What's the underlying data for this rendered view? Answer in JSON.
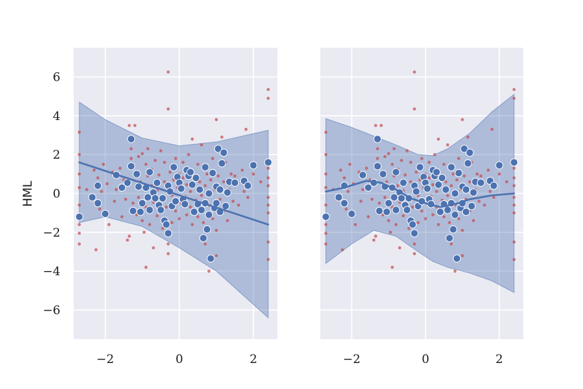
{
  "chart_data": {
    "type": "scatter",
    "ylabel": "HML",
    "xlim": [
      -2.85,
      2.65
    ],
    "ylim": [
      -7.5,
      7.5
    ],
    "x_ticks": [
      -2,
      0,
      2
    ],
    "x_tick_labels": [
      "−2",
      "0",
      "2"
    ],
    "y_ticks": [
      -6,
      -4,
      -2,
      0,
      2,
      4,
      6
    ],
    "y_tick_labels": [
      "−6",
      "−4",
      "−2",
      "0",
      "2",
      "4",
      "6"
    ],
    "grid": true,
    "colors": {
      "background": "#eaeaf2",
      "grid": "#ffffff",
      "small_points": "#c44e52",
      "large_points": "#4c72b0",
      "fit_line": "#4c72b0",
      "band": "#4c72b0"
    },
    "panels": [
      {
        "fit": "linear",
        "fit_line": [
          [
            -2.7,
            1.6
          ],
          [
            2.4,
            -1.6
          ]
        ],
        "band_upper": [
          [
            -2.7,
            4.7
          ],
          [
            -2.0,
            3.8
          ],
          [
            -1.0,
            2.85
          ],
          [
            0.0,
            2.45
          ],
          [
            1.0,
            2.65
          ],
          [
            2.4,
            3.25
          ]
        ],
        "band_lower": [
          [
            -2.7,
            -1.5
          ],
          [
            -2.0,
            -1.2
          ],
          [
            -1.0,
            -1.7
          ],
          [
            0.0,
            -2.8
          ],
          [
            1.0,
            -4.0
          ],
          [
            2.4,
            -6.4
          ]
        ]
      },
      {
        "fit": "lowess",
        "fit_line": [
          [
            -2.7,
            0.1
          ],
          [
            -2.2,
            0.3
          ],
          [
            -1.6,
            0.65
          ],
          [
            -1.2,
            0.55
          ],
          [
            -0.8,
            0.2
          ],
          [
            -0.4,
            -0.25
          ],
          [
            0.0,
            -0.5
          ],
          [
            0.4,
            -0.7
          ],
          [
            0.8,
            -0.55
          ],
          [
            1.2,
            -0.3
          ],
          [
            1.8,
            -0.1
          ],
          [
            2.4,
            0.0
          ]
        ],
        "band_upper": [
          [
            -2.7,
            3.85
          ],
          [
            -2.0,
            3.4
          ],
          [
            -1.4,
            2.95
          ],
          [
            -0.8,
            2.5
          ],
          [
            -0.2,
            2.0
          ],
          [
            0.2,
            1.95
          ],
          [
            0.6,
            2.3
          ],
          [
            1.2,
            3.1
          ],
          [
            1.8,
            4.2
          ],
          [
            2.4,
            5.1
          ]
        ],
        "band_lower": [
          [
            -2.7,
            -3.6
          ],
          [
            -2.0,
            -2.6
          ],
          [
            -1.4,
            -1.9
          ],
          [
            -0.8,
            -2.2
          ],
          [
            -0.2,
            -3.0
          ],
          [
            0.2,
            -3.5
          ],
          [
            0.6,
            -3.8
          ],
          [
            1.2,
            -4.1
          ],
          [
            1.8,
            -4.5
          ],
          [
            2.4,
            -5.1
          ]
        ]
      }
    ],
    "large_points": [
      [
        -2.7,
        -1.2
      ],
      [
        -2.35,
        -0.2
      ],
      [
        -2.2,
        0.4
      ],
      [
        -2.2,
        -0.5
      ],
      [
        -2.0,
        -1.05
      ],
      [
        -1.7,
        0.95
      ],
      [
        -1.55,
        0.3
      ],
      [
        -1.4,
        0.55
      ],
      [
        -1.3,
        2.8
      ],
      [
        -1.3,
        1.4
      ],
      [
        -1.25,
        -0.9
      ],
      [
        -1.15,
        1.0
      ],
      [
        -1.1,
        0.35
      ],
      [
        -1.05,
        -0.95
      ],
      [
        -1.0,
        -0.5
      ],
      [
        -0.9,
        0.3
      ],
      [
        -0.85,
        -0.2
      ],
      [
        -0.8,
        1.1
      ],
      [
        -0.8,
        -0.85
      ],
      [
        -0.7,
        0.05
      ],
      [
        -0.65,
        -0.25
      ],
      [
        -0.6,
        0.55
      ],
      [
        -0.55,
        -0.6
      ],
      [
        -0.5,
        -0.85
      ],
      [
        -0.45,
        -0.25
      ],
      [
        -0.4,
        -1.4
      ],
      [
        -0.35,
        -1.6
      ],
      [
        -0.3,
        -2.05
      ],
      [
        -0.3,
        0.4
      ],
      [
        -0.25,
        0.1
      ],
      [
        -0.2,
        -0.65
      ],
      [
        -0.15,
        1.35
      ],
      [
        -0.1,
        -0.4
      ],
      [
        -0.05,
        0.85
      ],
      [
        0.0,
        0.55
      ],
      [
        0.05,
        0.25
      ],
      [
        0.1,
        -0.3
      ],
      [
        0.15,
        -0.55
      ],
      [
        0.2,
        1.2
      ],
      [
        0.25,
        0.9
      ],
      [
        0.3,
        1.1
      ],
      [
        0.35,
        0.45
      ],
      [
        0.4,
        -0.95
      ],
      [
        0.45,
        0.8
      ],
      [
        0.5,
        -0.55
      ],
      [
        0.55,
        0.2
      ],
      [
        0.6,
        -0.85
      ],
      [
        0.65,
        -2.3
      ],
      [
        0.7,
        1.35
      ],
      [
        0.7,
        -0.5
      ],
      [
        0.75,
        -1.85
      ],
      [
        0.8,
        0.0
      ],
      [
        0.8,
        -1.1
      ],
      [
        0.85,
        -3.35
      ],
      [
        0.9,
        1.05
      ],
      [
        0.95,
        -0.75
      ],
      [
        1.0,
        0.35
      ],
      [
        1.0,
        -0.5
      ],
      [
        1.05,
        2.3
      ],
      [
        1.1,
        -0.95
      ],
      [
        1.1,
        0.2
      ],
      [
        1.15,
        1.55
      ],
      [
        1.2,
        2.1
      ],
      [
        1.25,
        -0.65
      ],
      [
        1.3,
        0.05
      ],
      [
        1.35,
        0.6
      ],
      [
        1.5,
        0.55
      ],
      [
        1.75,
        0.65
      ],
      [
        1.85,
        0.4
      ],
      [
        2.0,
        1.45
      ],
      [
        2.4,
        1.6
      ]
    ],
    "small_points": [
      [
        -2.7,
        3.15
      ],
      [
        -2.7,
        2.0
      ],
      [
        -2.7,
        1.0
      ],
      [
        -2.7,
        0.3
      ],
      [
        -2.7,
        -0.6
      ],
      [
        -2.7,
        -1.6
      ],
      [
        -2.7,
        -2.05
      ],
      [
        -2.7,
        -2.6
      ],
      [
        -2.5,
        0.2
      ],
      [
        -2.4,
        -0.3
      ],
      [
        -2.3,
        1.2
      ],
      [
        -2.25,
        -2.9
      ],
      [
        -2.2,
        0.8
      ],
      [
        -2.15,
        -0.8
      ],
      [
        -2.1,
        0.1
      ],
      [
        -2.05,
        1.5
      ],
      [
        -1.95,
        0.5
      ],
      [
        -1.9,
        -1.6
      ],
      [
        -1.8,
        1.1
      ],
      [
        -1.75,
        -0.4
      ],
      [
        -1.7,
        0.2
      ],
      [
        -1.6,
        1.3
      ],
      [
        -1.55,
        -1.2
      ],
      [
        -1.5,
        0.7
      ],
      [
        -1.45,
        -0.3
      ],
      [
        -1.4,
        -2.4
      ],
      [
        -1.35,
        3.5
      ],
      [
        -1.35,
        -2.2
      ],
      [
        -1.3,
        2.3
      ],
      [
        -1.3,
        1.8
      ],
      [
        -1.25,
        -0.5
      ],
      [
        -1.2,
        3.5
      ],
      [
        -1.2,
        0.9
      ],
      [
        -1.15,
        -1.1
      ],
      [
        -1.1,
        1.9
      ],
      [
        -1.1,
        -0.2
      ],
      [
        -1.05,
        0.6
      ],
      [
        -1.0,
        -1.4
      ],
      [
        -1.0,
        2.05
      ],
      [
        -0.95,
        -2.0
      ],
      [
        -0.9,
        1.5
      ],
      [
        -0.9,
        -0.7
      ],
      [
        -0.9,
        -3.8
      ],
      [
        -0.85,
        0.9
      ],
      [
        -0.85,
        2.3
      ],
      [
        -0.8,
        -1.6
      ],
      [
        -0.75,
        0.4
      ],
      [
        -0.75,
        1.25
      ],
      [
        -0.7,
        -0.45
      ],
      [
        -0.7,
        -2.8
      ],
      [
        -0.65,
        1.7
      ],
      [
        -0.6,
        0.15
      ],
      [
        -0.6,
        -1.15
      ],
      [
        -0.55,
        0.95
      ],
      [
        -0.5,
        2.2
      ],
      [
        -0.5,
        -0.2
      ],
      [
        -0.45,
        -1.8
      ],
      [
        -0.4,
        0.6
      ],
      [
        -0.4,
        1.6
      ],
      [
        -0.35,
        -0.7
      ],
      [
        -0.3,
        6.25
      ],
      [
        -0.3,
        4.35
      ],
      [
        -0.3,
        -2.6
      ],
      [
        -0.3,
        -3.1
      ],
      [
        -0.25,
        1.1
      ],
      [
        -0.2,
        -0.1
      ],
      [
        -0.2,
        -1.5
      ],
      [
        -0.15,
        0.7
      ],
      [
        -0.1,
        1.8
      ],
      [
        -0.1,
        -0.9
      ],
      [
        -0.05,
        0.3
      ],
      [
        0.0,
        -1.3
      ],
      [
        0.0,
        1.0
      ],
      [
        0.05,
        -0.5
      ],
      [
        0.1,
        0.8
      ],
      [
        0.1,
        1.6
      ],
      [
        0.15,
        -0.15
      ],
      [
        0.2,
        -1.1
      ],
      [
        0.2,
        0.45
      ],
      [
        0.25,
        2.0
      ],
      [
        0.3,
        -0.7
      ],
      [
        0.3,
        0.1
      ],
      [
        0.35,
        2.8
      ],
      [
        0.35,
        -1.6
      ],
      [
        0.4,
        0.9
      ],
      [
        0.45,
        -0.35
      ],
      [
        0.5,
        1.5
      ],
      [
        0.5,
        -1.2
      ],
      [
        0.55,
        0.6
      ],
      [
        0.6,
        -0.1
      ],
      [
        0.6,
        2.5
      ],
      [
        0.65,
        -1.5
      ],
      [
        0.7,
        0.4
      ],
      [
        0.7,
        -2.6
      ],
      [
        0.75,
        1.0
      ],
      [
        0.8,
        -0.6
      ],
      [
        0.8,
        -4.0
      ],
      [
        0.85,
        0.7
      ],
      [
        0.9,
        -1.3
      ],
      [
        0.9,
        1.8
      ],
      [
        0.95,
        0.2
      ],
      [
        1.0,
        3.8
      ],
      [
        1.0,
        -1.9
      ],
      [
        1.0,
        -3.2
      ],
      [
        1.05,
        0.9
      ],
      [
        1.1,
        -0.3
      ],
      [
        1.15,
        2.9
      ],
      [
        1.2,
        -0.9
      ],
      [
        1.2,
        0.6
      ],
      [
        1.25,
        1.6
      ],
      [
        1.3,
        -1.4
      ],
      [
        1.35,
        0.2
      ],
      [
        1.4,
        1.0
      ],
      [
        1.45,
        -0.4
      ],
      [
        1.5,
        0.9
      ],
      [
        1.6,
        -0.6
      ],
      [
        1.7,
        1.2
      ],
      [
        1.75,
        0.1
      ],
      [
        1.8,
        3.3
      ],
      [
        1.85,
        -0.2
      ],
      [
        2.0,
        1.0
      ],
      [
        2.2,
        0.6
      ],
      [
        2.4,
        5.35
      ],
      [
        2.4,
        4.9
      ],
      [
        2.4,
        0.8
      ],
      [
        2.4,
        0.4
      ],
      [
        2.4,
        -0.6
      ],
      [
        2.4,
        -1.0
      ],
      [
        2.4,
        -2.5
      ],
      [
        2.4,
        -3.4
      ],
      [
        2.4,
        1.3
      ],
      [
        2.4,
        -0.2
      ]
    ]
  }
}
